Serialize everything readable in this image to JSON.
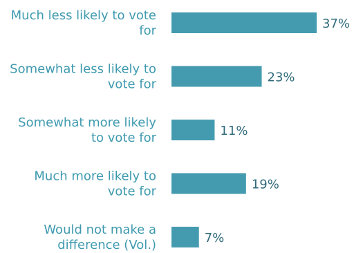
{
  "chart_data": {
    "type": "bar",
    "orientation": "horizontal",
    "categories": [
      [
        "Much less likely to vote",
        "for"
      ],
      [
        "Somewhat less likely to",
        "vote for"
      ],
      [
        "Somewhat more likely",
        "to vote for"
      ],
      [
        "Much more likely to",
        "vote for"
      ],
      [
        "Would not make a",
        "difference (Vol.)"
      ]
    ],
    "values": [
      37,
      23,
      11,
      19,
      7
    ],
    "value_labels": [
      "37%",
      "23%",
      "11%",
      "19%",
      "7%"
    ],
    "unit": "%",
    "colors": {
      "bar": "#449baf",
      "category_text": "#3f9aaf",
      "value_text": "#2f6a7a"
    },
    "grid": false,
    "legend": "none"
  }
}
